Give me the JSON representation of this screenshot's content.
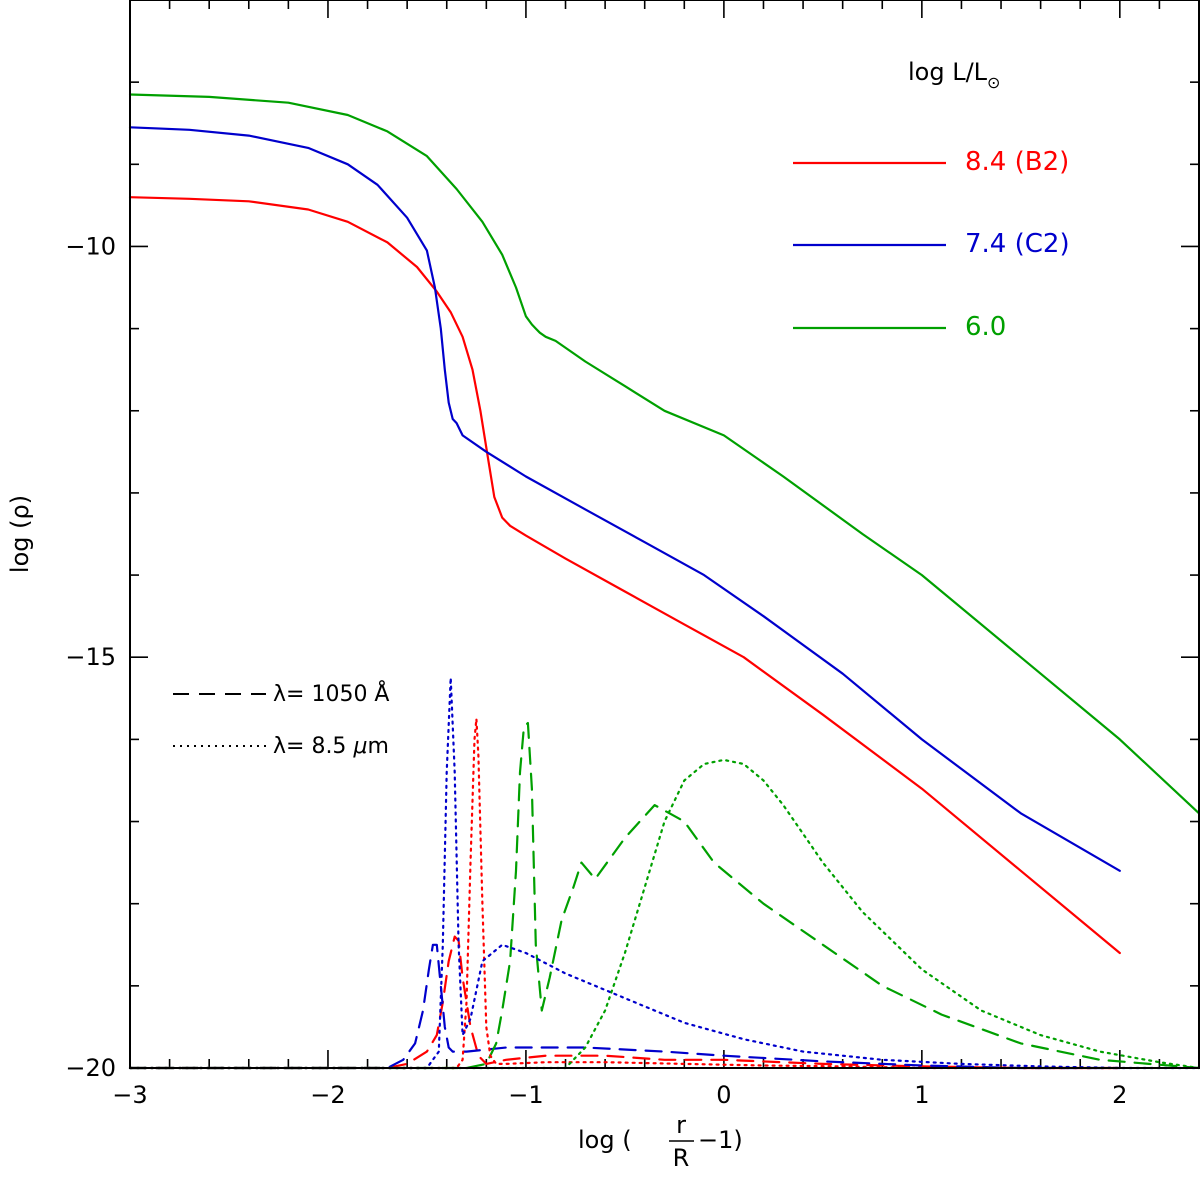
{
  "chart_data": {
    "type": "line",
    "xlabel": "log (r/R − 1)",
    "xlabel_parts": {
      "prefix": "log (",
      "num": "r",
      "den": "R",
      "suffix": "−1)"
    },
    "ylabel": "log (ρ)",
    "xlim": [
      -3,
      2.4
    ],
    "ylim": [
      -20,
      -7
    ],
    "xticks": [
      -3,
      -2,
      -1,
      0,
      1,
      2
    ],
    "xtick_labels": [
      "−3",
      "−2",
      "−1",
      "0",
      "1",
      "2"
    ],
    "yticks": [
      -20,
      -15,
      -10
    ],
    "ytick_labels": [
      "−20",
      "−15",
      "−10"
    ],
    "legend": {
      "title": "log L/L⊙",
      "title_parts": {
        "a": "log  L/L",
        "sub": "⊙"
      },
      "placement": "top-right",
      "entries": [
        {
          "label": "8.4  (B2)",
          "color": "#ff0000"
        },
        {
          "label": "7.4  (C2)",
          "color": "#0000cc"
        },
        {
          "label": "6.0",
          "color": "#00a000"
        }
      ]
    },
    "style_legend": [
      {
        "label": "λ= 1050 Å",
        "style": "dashed"
      },
      {
        "label": "λ= 8.5 μm",
        "style": "dotted",
        "parts": {
          "a": "λ= 8.5 ",
          "mu": "μ",
          "b": "m"
        }
      }
    ],
    "series": [
      {
        "name": "8.4  (B2)",
        "color": "#ff0000",
        "style": "solid",
        "x": [
          -3,
          -2.7,
          -2.4,
          -2.1,
          -1.9,
          -1.7,
          -1.55,
          -1.45,
          -1.38,
          -1.32,
          -1.27,
          -1.23,
          -1.19,
          -1.16,
          -1.12,
          -1.08,
          -1.0,
          -0.8,
          -0.5,
          -0.2,
          0.1,
          0.5,
          1.0,
          1.5,
          2.0
        ],
        "y": [
          -9.4,
          -9.42,
          -9.45,
          -9.55,
          -9.7,
          -9.95,
          -10.25,
          -10.55,
          -10.8,
          -11.1,
          -11.5,
          -12.0,
          -12.6,
          -13.05,
          -13.3,
          -13.4,
          -13.52,
          -13.8,
          -14.2,
          -14.6,
          -15.0,
          -15.7,
          -16.6,
          -17.6,
          -18.6
        ]
      },
      {
        "name": "7.4  (C2)",
        "color": "#0000cc",
        "style": "solid",
        "x": [
          -3,
          -2.7,
          -2.4,
          -2.1,
          -1.9,
          -1.75,
          -1.6,
          -1.5,
          -1.46,
          -1.43,
          -1.41,
          -1.39,
          -1.37,
          -1.35,
          -1.32,
          -1.2,
          -1.0,
          -0.7,
          -0.4,
          -0.1,
          0.2,
          0.6,
          1.0,
          1.5,
          2.0
        ],
        "y": [
          -8.55,
          -8.58,
          -8.65,
          -8.8,
          -9.0,
          -9.25,
          -9.65,
          -10.05,
          -10.5,
          -11.0,
          -11.5,
          -11.9,
          -12.1,
          -12.15,
          -12.3,
          -12.5,
          -12.8,
          -13.2,
          -13.6,
          -14.0,
          -14.5,
          -15.2,
          -16.0,
          -16.9,
          -17.6
        ]
      },
      {
        "name": "6.0",
        "color": "#00a000",
        "style": "solid",
        "x": [
          -3,
          -2.6,
          -2.2,
          -1.9,
          -1.7,
          -1.5,
          -1.35,
          -1.22,
          -1.12,
          -1.05,
          -1.0,
          -0.97,
          -0.95,
          -0.93,
          -0.9,
          -0.85,
          -0.7,
          -0.5,
          -0.3,
          0.0,
          0.3,
          0.7,
          1.0,
          1.5,
          2.0,
          2.4
        ],
        "y": [
          -8.15,
          -8.18,
          -8.25,
          -8.4,
          -8.6,
          -8.9,
          -9.3,
          -9.7,
          -10.1,
          -10.5,
          -10.85,
          -10.95,
          -11.0,
          -11.05,
          -11.1,
          -11.15,
          -11.4,
          -11.7,
          -12.0,
          -12.3,
          -12.8,
          -13.5,
          -14.0,
          -15.0,
          -16.0,
          -16.9
        ]
      },
      {
        "name": "",
        "color": "#ff0000",
        "style": "dashed",
        "x": [
          -3,
          -1.7,
          -1.6,
          -1.5,
          -1.45,
          -1.42,
          -1.39,
          -1.36,
          -1.34,
          -1.32,
          -1.28,
          -1.24,
          -1.2,
          -1.1,
          -0.9,
          -0.6,
          -0.3,
          0,
          0.5,
          1.0,
          1.5,
          2.0
        ],
        "y": [
          -20,
          -20,
          -19.95,
          -19.8,
          -19.6,
          -19.2,
          -18.7,
          -18.4,
          -18.45,
          -18.9,
          -19.5,
          -19.85,
          -19.95,
          -19.9,
          -19.85,
          -19.85,
          -19.9,
          -19.9,
          -19.95,
          -19.98,
          -20,
          -20
        ]
      },
      {
        "name": "",
        "color": "#0000cc",
        "style": "dashed",
        "x": [
          -3,
          -1.7,
          -1.62,
          -1.56,
          -1.52,
          -1.49,
          -1.47,
          -1.45,
          -1.43,
          -1.41,
          -1.39,
          -1.37,
          -1.3,
          -1.1,
          -0.7,
          -0.3,
          0,
          0.5,
          1.0,
          1.5,
          2.0
        ],
        "y": [
          -20,
          -20,
          -19.9,
          -19.7,
          -19.3,
          -18.8,
          -18.5,
          -18.5,
          -19.0,
          -19.5,
          -19.75,
          -19.8,
          -19.8,
          -19.75,
          -19.75,
          -19.8,
          -19.85,
          -19.92,
          -19.97,
          -20,
          -20
        ]
      },
      {
        "name": "",
        "color": "#00a000",
        "style": "dashed",
        "x": [
          -3,
          -1.3,
          -1.2,
          -1.15,
          -1.12,
          -1.08,
          -1.05,
          -1.03,
          -1.01,
          -0.99,
          -0.97,
          -0.95,
          -0.92,
          -0.88,
          -0.82,
          -0.76,
          -0.72,
          -0.65,
          -0.5,
          -0.35,
          -0.2,
          -0.05,
          0.2,
          0.5,
          0.8,
          1.1,
          1.5,
          1.9,
          2.4
        ],
        "y": [
          -20,
          -20,
          -19.95,
          -19.7,
          -19.3,
          -18.7,
          -17.6,
          -16.4,
          -15.85,
          -15.8,
          -16.6,
          -18.5,
          -19.3,
          -18.9,
          -18.2,
          -17.8,
          -17.5,
          -17.7,
          -17.2,
          -16.8,
          -17.0,
          -17.5,
          -18.0,
          -18.5,
          -19.0,
          -19.35,
          -19.7,
          -19.9,
          -20
        ]
      },
      {
        "name": "",
        "color": "#ff0000",
        "style": "dotted",
        "x": [
          -3,
          -1.35,
          -1.32,
          -1.3,
          -1.28,
          -1.26,
          -1.25,
          -1.24,
          -1.22,
          -1.2,
          -1.18,
          -1.15,
          -1.1,
          -0.9,
          -0.6,
          -0.2,
          0.2,
          0.6,
          1.0,
          1.5,
          2.0
        ],
        "y": [
          -20,
          -20,
          -19.9,
          -19.2,
          -17.5,
          -16.0,
          -15.75,
          -16.2,
          -18.0,
          -19.5,
          -19.85,
          -19.95,
          -19.95,
          -19.93,
          -19.93,
          -19.95,
          -19.97,
          -19.98,
          -20,
          -20,
          -20
        ]
      },
      {
        "name": "",
        "color": "#0000cc",
        "style": "dotted",
        "x": [
          -3,
          -1.5,
          -1.44,
          -1.42,
          -1.4,
          -1.38,
          -1.36,
          -1.34,
          -1.32,
          -1.28,
          -1.22,
          -1.12,
          -1.0,
          -0.8,
          -0.5,
          -0.2,
          0.1,
          0.4,
          0.8,
          1.2,
          1.6,
          2.0,
          2.4
        ],
        "y": [
          -20,
          -20,
          -19.8,
          -18.5,
          -16.4,
          -15.25,
          -16.4,
          -18.5,
          -19.6,
          -19.4,
          -18.7,
          -18.5,
          -18.6,
          -18.85,
          -19.15,
          -19.45,
          -19.65,
          -19.8,
          -19.9,
          -19.95,
          -19.98,
          -20,
          -20
        ]
      },
      {
        "name": "",
        "color": "#00a000",
        "style": "dotted",
        "x": [
          -3,
          -0.8,
          -0.7,
          -0.6,
          -0.5,
          -0.4,
          -0.3,
          -0.2,
          -0.1,
          0.0,
          0.1,
          0.2,
          0.3,
          0.5,
          0.7,
          1.0,
          1.3,
          1.6,
          1.9,
          2.2,
          2.4
        ],
        "y": [
          -20,
          -20,
          -19.75,
          -19.3,
          -18.6,
          -17.8,
          -17.0,
          -16.5,
          -16.3,
          -16.25,
          -16.3,
          -16.5,
          -16.8,
          -17.5,
          -18.1,
          -18.8,
          -19.3,
          -19.6,
          -19.8,
          -19.93,
          -20
        ]
      }
    ]
  }
}
